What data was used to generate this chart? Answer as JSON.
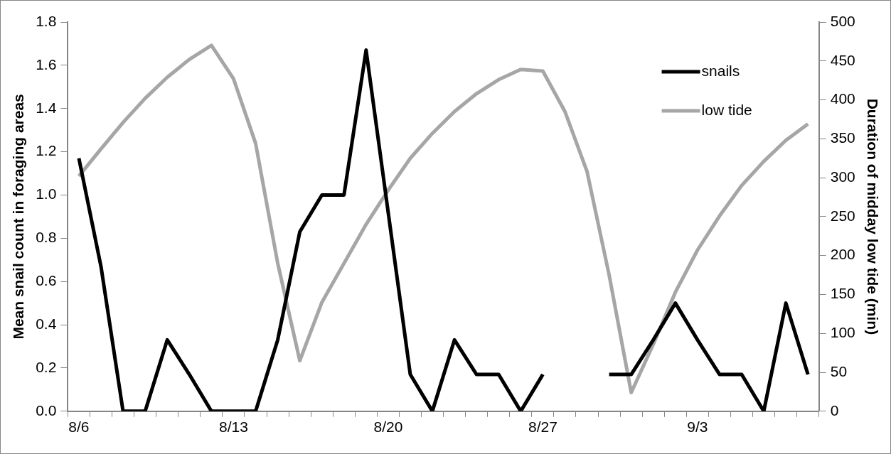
{
  "chart_data": {
    "type": "line",
    "xlabel": null,
    "ylabel": "Mean snail count in foraging areas",
    "y2label": "Duration of midday low tide (min)",
    "categories": [
      "8/6",
      null,
      null,
      null,
      null,
      null,
      null,
      "8/13",
      null,
      null,
      null,
      null,
      null,
      null,
      "8/20",
      null,
      null,
      null,
      null,
      null,
      null,
      "8/27",
      null,
      null,
      null,
      null,
      null,
      null,
      "9/3",
      null,
      null,
      null,
      null,
      null
    ],
    "series": [
      {
        "name": "snails",
        "color": "#000000",
        "values": [
          1.17,
          0.67,
          0,
          0,
          0.33,
          0.17,
          0,
          0,
          0,
          0.33,
          0.83,
          1.0,
          1.0,
          1.67,
          0.92,
          0.17,
          0,
          0.33,
          0.17,
          0.17,
          0,
          0.17,
          null,
          null,
          0.17,
          0.17,
          0.33,
          0.5,
          0.33,
          0.17,
          0.17,
          0,
          0.5,
          0.17
        ]
      },
      {
        "name": "low tide",
        "color": "#a6a6a6",
        "axis": "y2",
        "values": [
          302,
          337,
          371,
          402,
          429,
          452,
          470,
          427,
          344,
          190,
          65,
          140,
          190,
          240,
          284,
          325,
          357,
          385,
          408,
          426,
          439,
          437,
          385,
          308,
          175,
          24,
          86,
          153,
          207,
          251,
          290,
          321,
          348,
          369
        ]
      }
    ],
    "ylim": [
      0,
      1.8
    ],
    "yticks": [
      {
        "value": 0,
        "label": "0.0"
      },
      {
        "value": 0.2,
        "label": "0.2"
      },
      {
        "value": 0.4,
        "label": "0.4"
      },
      {
        "value": 0.6,
        "label": "0.6"
      },
      {
        "value": 0.8,
        "label": "0.8"
      },
      {
        "value": 1.0,
        "label": "1.0"
      },
      {
        "value": 1.2,
        "label": "1.2"
      },
      {
        "value": 1.4,
        "label": "1.4"
      },
      {
        "value": 1.6,
        "label": "1.6"
      },
      {
        "value": 1.8,
        "label": "1.8"
      }
    ],
    "y2lim": [
      0,
      500
    ],
    "y2ticks": [
      0,
      50,
      100,
      150,
      200,
      250,
      300,
      350,
      400,
      450,
      500
    ],
    "grid": false,
    "legend": "top right",
    "marker": "none",
    "line_style": "solid"
  }
}
